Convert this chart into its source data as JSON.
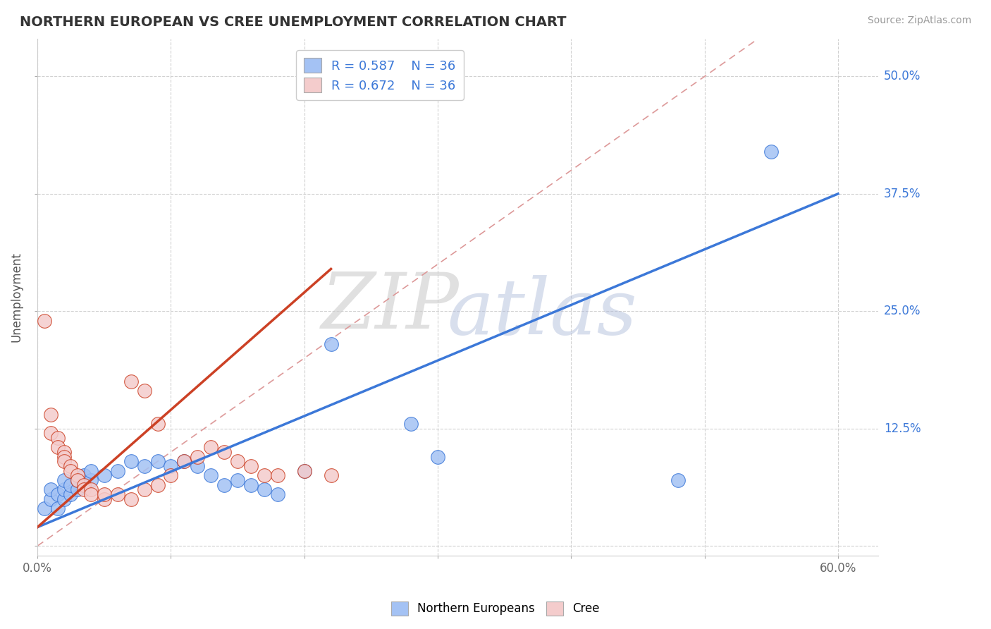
{
  "title": "NORTHERN EUROPEAN VS CREE UNEMPLOYMENT CORRELATION CHART",
  "source": "Source: ZipAtlas.com",
  "ylabel": "Unemployment",
  "ytick_labels": [
    "",
    "12.5%",
    "25.0%",
    "37.5%",
    "50.0%"
  ],
  "ytick_values": [
    0,
    0.125,
    0.25,
    0.375,
    0.5
  ],
  "xlim": [
    0.0,
    0.63
  ],
  "ylim": [
    -0.01,
    0.54
  ],
  "legend_R_blue": "R = 0.587",
  "legend_N_blue": "N = 36",
  "legend_R_pink": "R = 0.672",
  "legend_N_pink": "N = 36",
  "blue_color": "#a4c2f4",
  "pink_color": "#f4cccc",
  "blue_line_color": "#3c78d8",
  "pink_line_color": "#cc4125",
  "diagonal_color": "#dd9999",
  "blue_scatter": [
    [
      0.005,
      0.04
    ],
    [
      0.01,
      0.05
    ],
    [
      0.01,
      0.06
    ],
    [
      0.015,
      0.04
    ],
    [
      0.015,
      0.055
    ],
    [
      0.02,
      0.05
    ],
    [
      0.02,
      0.06
    ],
    [
      0.02,
      0.07
    ],
    [
      0.025,
      0.055
    ],
    [
      0.025,
      0.065
    ],
    [
      0.03,
      0.06
    ],
    [
      0.03,
      0.07
    ],
    [
      0.035,
      0.065
    ],
    [
      0.035,
      0.075
    ],
    [
      0.04,
      0.07
    ],
    [
      0.04,
      0.08
    ],
    [
      0.05,
      0.075
    ],
    [
      0.06,
      0.08
    ],
    [
      0.07,
      0.09
    ],
    [
      0.08,
      0.085
    ],
    [
      0.09,
      0.09
    ],
    [
      0.1,
      0.085
    ],
    [
      0.11,
      0.09
    ],
    [
      0.12,
      0.085
    ],
    [
      0.13,
      0.075
    ],
    [
      0.14,
      0.065
    ],
    [
      0.15,
      0.07
    ],
    [
      0.16,
      0.065
    ],
    [
      0.17,
      0.06
    ],
    [
      0.18,
      0.055
    ],
    [
      0.2,
      0.08
    ],
    [
      0.22,
      0.215
    ],
    [
      0.3,
      0.095
    ],
    [
      0.48,
      0.07
    ],
    [
      0.55,
      0.42
    ],
    [
      0.28,
      0.13
    ]
  ],
  "pink_scatter": [
    [
      0.005,
      0.24
    ],
    [
      0.01,
      0.14
    ],
    [
      0.01,
      0.12
    ],
    [
      0.015,
      0.115
    ],
    [
      0.015,
      0.105
    ],
    [
      0.02,
      0.1
    ],
    [
      0.02,
      0.095
    ],
    [
      0.02,
      0.09
    ],
    [
      0.025,
      0.085
    ],
    [
      0.025,
      0.08
    ],
    [
      0.03,
      0.075
    ],
    [
      0.03,
      0.07
    ],
    [
      0.035,
      0.065
    ],
    [
      0.035,
      0.06
    ],
    [
      0.04,
      0.06
    ],
    [
      0.04,
      0.055
    ],
    [
      0.05,
      0.05
    ],
    [
      0.05,
      0.055
    ],
    [
      0.06,
      0.055
    ],
    [
      0.07,
      0.05
    ],
    [
      0.08,
      0.06
    ],
    [
      0.09,
      0.065
    ],
    [
      0.1,
      0.075
    ],
    [
      0.11,
      0.09
    ],
    [
      0.12,
      0.095
    ],
    [
      0.13,
      0.105
    ],
    [
      0.14,
      0.1
    ],
    [
      0.15,
      0.09
    ],
    [
      0.16,
      0.085
    ],
    [
      0.17,
      0.075
    ],
    [
      0.18,
      0.075
    ],
    [
      0.2,
      0.08
    ],
    [
      0.22,
      0.075
    ],
    [
      0.07,
      0.175
    ],
    [
      0.08,
      0.165
    ],
    [
      0.09,
      0.13
    ]
  ],
  "blue_line_pts": [
    [
      0.0,
      0.02
    ],
    [
      0.6,
      0.375
    ]
  ],
  "pink_line_pts": [
    [
      0.0,
      0.02
    ],
    [
      0.22,
      0.295
    ]
  ],
  "diagonal_line": [
    [
      0.0,
      0.0
    ],
    [
      0.54,
      0.54
    ]
  ]
}
